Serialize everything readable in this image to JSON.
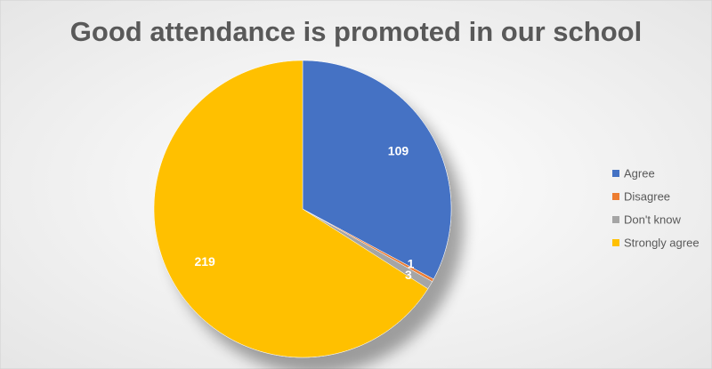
{
  "chart_data": {
    "type": "pie",
    "title": "Good attendance is promoted in our school",
    "categories": [
      "Agree",
      "Disagree",
      "Don't know",
      "Strongly agree"
    ],
    "values": [
      109,
      1,
      3,
      219
    ],
    "colors": [
      "#4472c4",
      "#ed7d31",
      "#a5a5a5",
      "#ffc000"
    ],
    "legend": "right"
  }
}
